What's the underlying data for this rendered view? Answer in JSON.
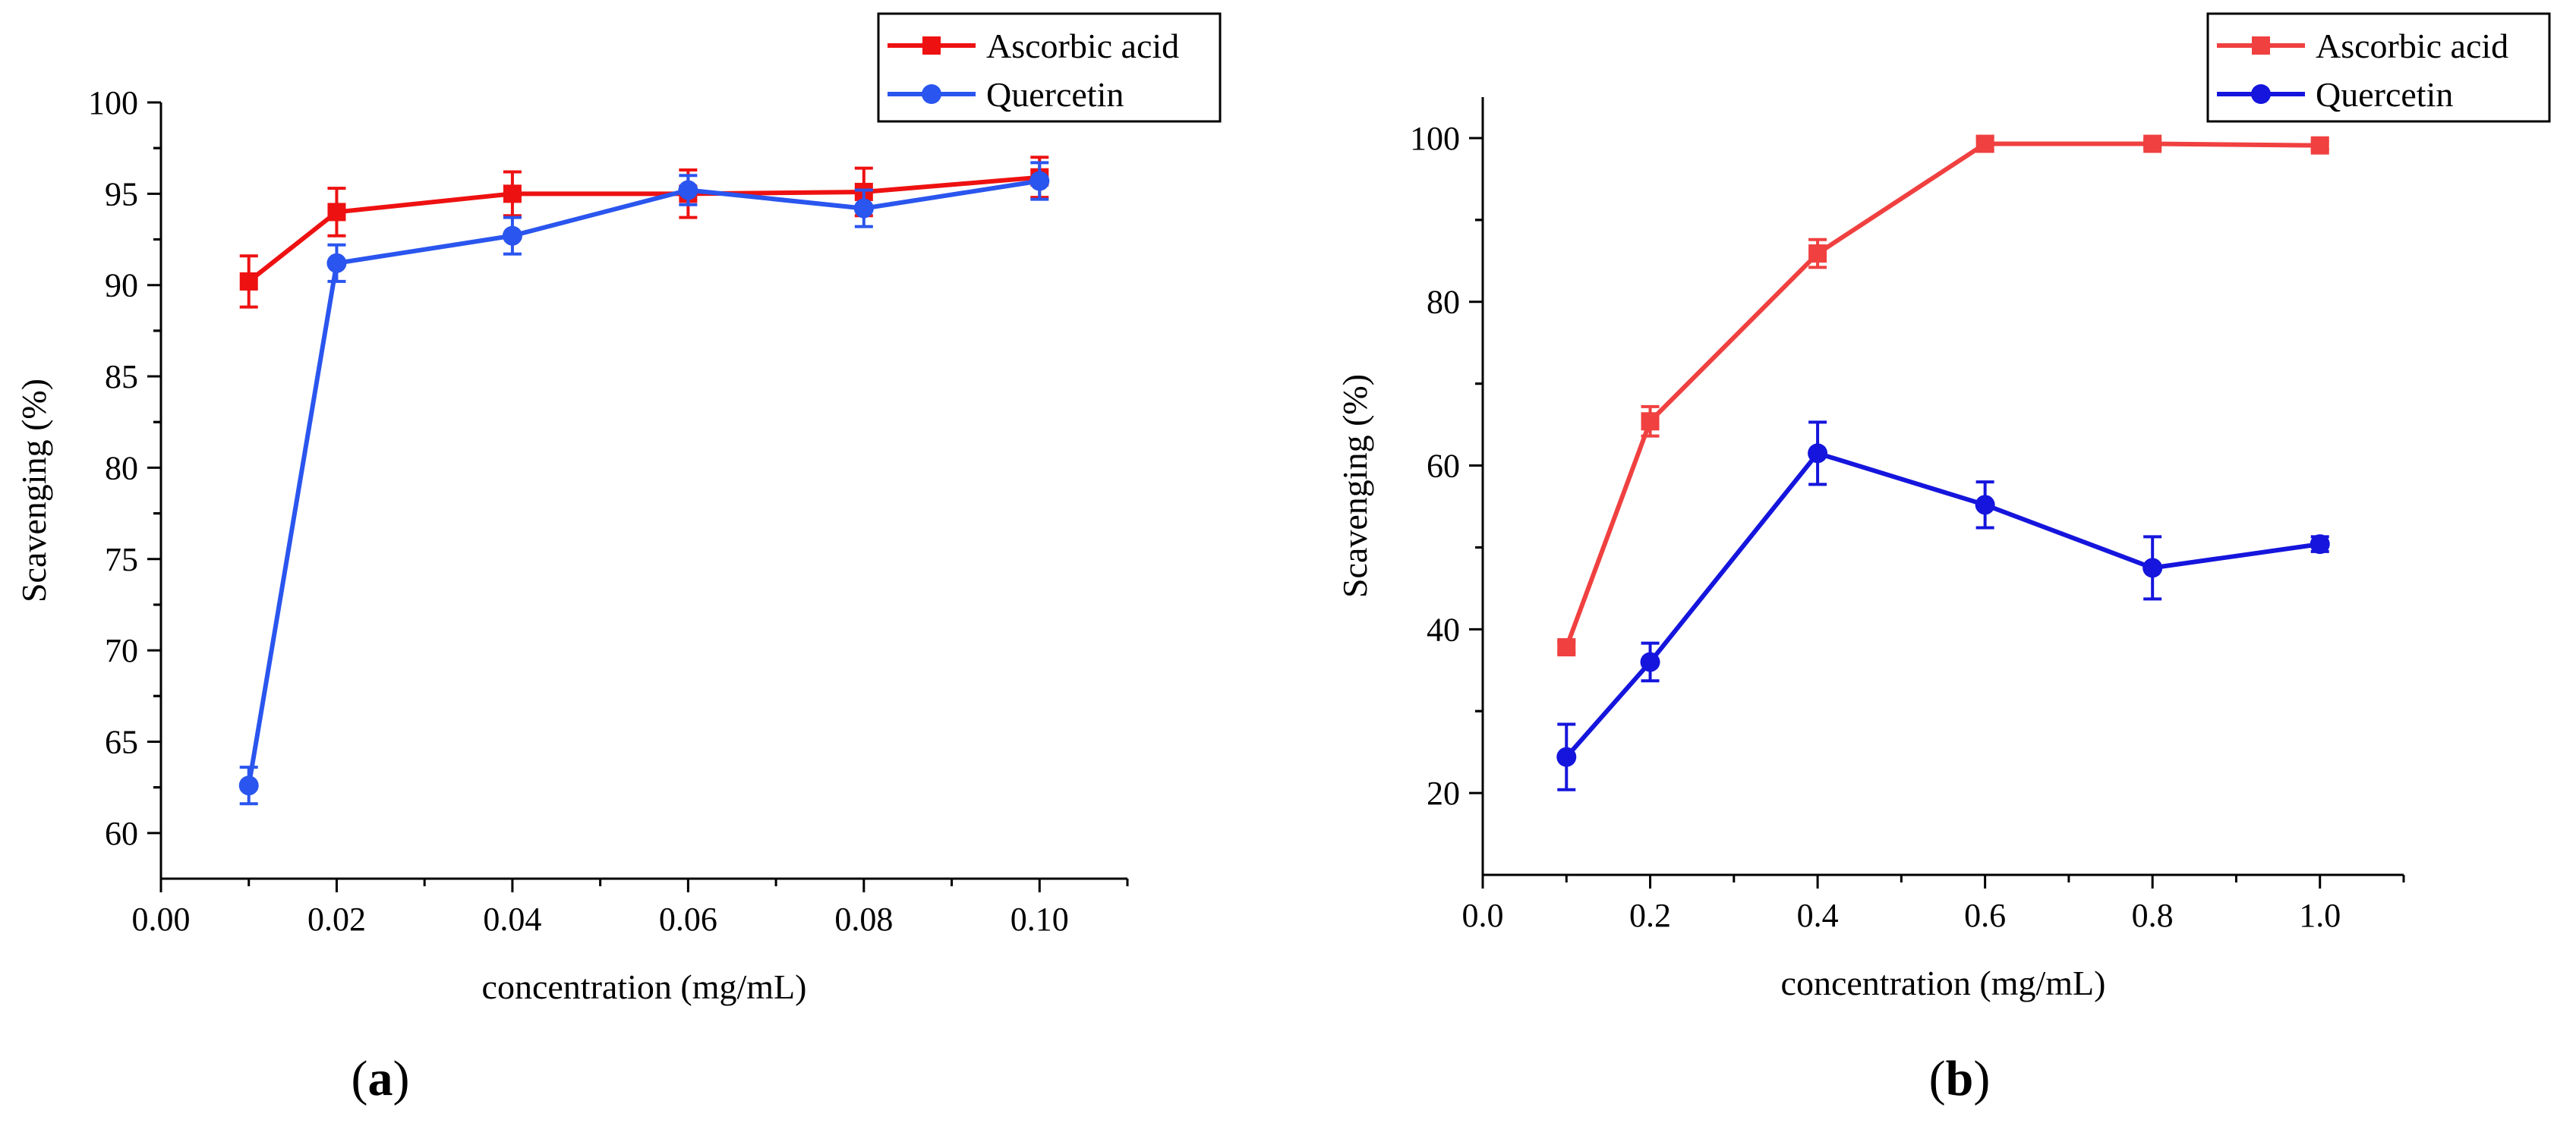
{
  "figure": {
    "panels": [
      {
        "label": "(a)",
        "label_parts": {
          "open": "(",
          "letter": "a",
          "close": ")"
        }
      },
      {
        "label": "(b)",
        "label_parts": {
          "open": "(",
          "letter": "b",
          "close": ")"
        }
      }
    ]
  },
  "chart_data": [
    {
      "type": "line",
      "panel": "a",
      "xlabel": "concentration (mg/mL)",
      "ylabel": "Scavenging (%)",
      "xlim": [
        0.0,
        0.11
      ],
      "ylim": [
        57.5,
        100
      ],
      "xticks": [
        0.0,
        0.02,
        0.04,
        0.06,
        0.08,
        0.1
      ],
      "xtick_labels": [
        "0.00",
        "0.02",
        "0.04",
        "0.06",
        "0.08",
        "0.10"
      ],
      "yticks": [
        60,
        65,
        70,
        75,
        80,
        85,
        90,
        95,
        100
      ],
      "ytick_labels": [
        "60",
        "65",
        "70",
        "75",
        "80",
        "85",
        "90",
        "95",
        "100"
      ],
      "legend_position": "top-right",
      "grid": false,
      "x": [
        0.01,
        0.02,
        0.04,
        0.06,
        0.08,
        0.1
      ],
      "series": [
        {
          "name": "Ascorbic acid",
          "color": "#ee1111",
          "marker": "square",
          "values": [
            90.2,
            94.0,
            95.0,
            95.0,
            95.1,
            95.9
          ],
          "errors": [
            1.4,
            1.3,
            1.2,
            1.3,
            1.3,
            1.1
          ]
        },
        {
          "name": "Quercetin",
          "color": "#2a55ee",
          "marker": "circle",
          "values": [
            62.6,
            91.2,
            92.7,
            95.2,
            94.2,
            95.7
          ],
          "errors": [
            1.0,
            1.0,
            1.0,
            0.8,
            1.0,
            1.0
          ]
        }
      ]
    },
    {
      "type": "line",
      "panel": "b",
      "xlabel": "concentration (mg/mL)",
      "ylabel": "Scavenging (%)",
      "xlim": [
        0.0,
        1.1
      ],
      "ylim": [
        10,
        105
      ],
      "xticks": [
        0.0,
        0.2,
        0.4,
        0.6,
        0.8,
        1.0
      ],
      "xtick_labels": [
        "0.0",
        "0.2",
        "0.4",
        "0.6",
        "0.8",
        "1.0"
      ],
      "yticks": [
        20,
        40,
        60,
        80,
        100
      ],
      "ytick_labels": [
        "20",
        "40",
        "60",
        "80",
        "100"
      ],
      "legend_position": "top-right",
      "grid": false,
      "x": [
        0.1,
        0.2,
        0.4,
        0.6,
        0.8,
        1.0
      ],
      "series": [
        {
          "name": "Ascorbic acid",
          "color": "#f04040",
          "marker": "square",
          "values": [
            37.8,
            65.4,
            85.9,
            99.3,
            99.3,
            99.1
          ],
          "errors": [
            0.7,
            1.8,
            1.7,
            0.8,
            0.5,
            0.5
          ]
        },
        {
          "name": "Quercetin",
          "color": "#1515dd",
          "marker": "circle",
          "values": [
            24.4,
            36.0,
            61.5,
            55.2,
            47.5,
            50.4
          ],
          "errors": [
            4.0,
            2.3,
            3.8,
            2.8,
            3.8,
            0.9
          ]
        }
      ]
    }
  ]
}
